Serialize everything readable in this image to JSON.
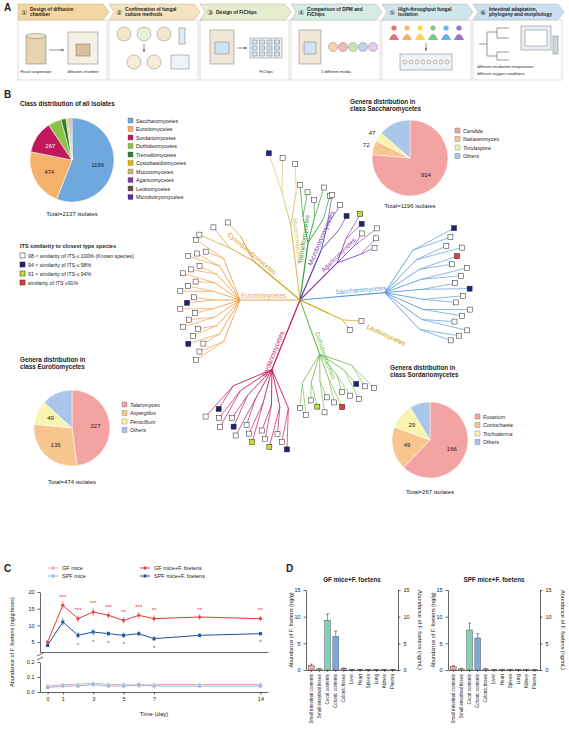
{
  "panel_labels": [
    "A",
    "B",
    "C",
    "D"
  ],
  "workflow": {
    "steps": [
      {
        "num": "①",
        "title": "Design of diffusion chamber",
        "captions": [
          "Fecal suspension",
          "diffusion chamber"
        ]
      },
      {
        "num": "②",
        "title": "Confirmation of fungal culture methods"
      },
      {
        "num": "③",
        "title": "Design of FiChips",
        "captions": [
          "FiChips"
        ]
      },
      {
        "num": "④",
        "title": "Comparison of DPM and FiChips",
        "captions": [
          "5 different media"
        ]
      },
      {
        "num": "⑤",
        "title": "High-throughput fungal isolation"
      },
      {
        "num": "⑥",
        "title": "Intestinal adaptation, phylogeny and morphology",
        "captions": [
          "different incubation temperature",
          "different oxygen conditions"
        ]
      }
    ]
  },
  "tree": {
    "legend_title": "ITS similarity to closest type species",
    "categories": [
      {
        "label": "98 < similarity of ITS ≤ 100% (Known species)",
        "color": "#ffffff"
      },
      {
        "label": "94 < similarity of ITS ≤ 98%",
        "color": "#1a237e"
      },
      {
        "label": "91 < similarity of ITS ≤ 94%",
        "color": "#c6e03a"
      },
      {
        "label": "similarity of ITS ≤91%",
        "color": "#e53935"
      }
    ],
    "clades": [
      {
        "name": "Mucoromycetes",
        "color": "#d9c36a",
        "leaves": [
          1,
          0,
          0
        ]
      },
      {
        "name": "Tremellomycetes",
        "color": "#3a9a3a",
        "leaves": [
          0,
          0,
          0,
          0,
          0
        ]
      },
      {
        "name": "Microbotryomycetes",
        "color": "#6a3fa8",
        "leaves": [
          0,
          0,
          1
        ]
      },
      {
        "name": "Agaricomycetes",
        "color": "#8e44ad",
        "leaves": [
          2,
          1,
          0,
          0,
          0,
          0
        ]
      },
      {
        "name": "Saccharomycetes",
        "color": "#5b9bd5",
        "leaves": [
          1,
          0,
          0,
          0,
          3,
          0,
          0,
          0,
          0,
          1,
          0,
          0,
          0,
          0,
          0,
          0,
          0,
          0
        ]
      },
      {
        "name": "Leotiomycetes",
        "color": "#c8a000",
        "leaves": [
          0,
          0
        ]
      },
      {
        "name": "Dothideomycetes",
        "color": "#7cbf5a",
        "leaves": [
          0,
          0,
          1,
          0,
          0,
          0,
          3,
          0,
          0,
          0,
          2,
          0,
          0,
          0
        ]
      },
      {
        "name": "Sordariomycetes",
        "color": "#c2185b",
        "leaves": [
          1,
          0,
          0,
          2,
          0,
          0,
          2,
          0,
          0,
          0,
          1,
          0,
          0,
          0,
          1,
          0
        ]
      },
      {
        "name": "Eurotiomycetes",
        "color": "#f0a04b",
        "leaves": [
          0,
          0,
          0,
          1,
          0,
          0,
          0,
          0,
          0,
          0,
          1,
          0,
          0,
          0,
          0,
          0,
          0,
          0,
          0,
          0,
          0,
          0
        ]
      },
      {
        "name": "Cystobasidiomycetes",
        "color": "#d4a017",
        "leaves": [
          0,
          0,
          0
        ]
      }
    ]
  },
  "chart_data": [
    {
      "type": "pie",
      "title": "Class distribution of all isolates",
      "categories": [
        "Saccharomycetes",
        "Eurotiomycetes",
        "Sordariomycetes",
        "Dothideomycetes",
        "Tremellomycetes",
        "Cystobasidiomycetes",
        "Mucoromycetes",
        "Agaricomycetes",
        "Leotiomycetes",
        "Microbotryomycetes"
      ],
      "values": [
        1196,
        474,
        267,
        110,
        40,
        15,
        12,
        10,
        8,
        5
      ],
      "colors": [
        "#6fa8dc",
        "#f6b26b",
        "#c2185b",
        "#8bc34a",
        "#2e7d32",
        "#e6b800",
        "#c9b27c",
        "#7b3fa0",
        "#6d4c41",
        "#512da8"
      ],
      "data_labels": true,
      "value_labels": [
        "1196",
        "474",
        "267",
        null,
        null,
        null,
        null,
        null,
        null,
        null
      ],
      "annotations": [
        {
          "text": "Total=2137 isolates"
        }
      ]
    },
    {
      "type": "pie",
      "title": "Genera distribution in class Saccharomycetes",
      "categories": [
        "Candida",
        "Nakaseomyces",
        "Torulaspora",
        "Others"
      ],
      "values": [
        914,
        72,
        47,
        163
      ],
      "colors": [
        "#f4a3a3",
        "#f8c58f",
        "#f9f3b0",
        "#a9c6e8"
      ],
      "data_labels": true,
      "value_labels": [
        "914",
        "72",
        "47",
        null
      ],
      "annotations": [
        {
          "text": "Total=1196 isolates"
        }
      ]
    },
    {
      "type": "pie",
      "title": "Genera distribution in class Eurotiomycetes",
      "categories": [
        "Talaromyces",
        "Aspergillus",
        "Penicillium",
        "Others"
      ],
      "values": [
        227,
        136,
        49,
        62
      ],
      "colors": [
        "#f4a3a3",
        "#f8c58f",
        "#f9f3b0",
        "#a9c6e8"
      ],
      "data_labels": true,
      "value_labels": [
        "227",
        "136",
        "49",
        null
      ],
      "annotations": [
        {
          "text": "Total=474 isolates"
        }
      ]
    },
    {
      "type": "pie",
      "title": "Genera distribution in class Sordariomycetes",
      "categories": [
        "Fusarium",
        "Coniochaeta",
        "Trichoderma",
        "Others"
      ],
      "values": [
        166,
        49,
        29,
        23
      ],
      "colors": [
        "#f4a3a3",
        "#f8c58f",
        "#f9f3b0",
        "#a9c6e8"
      ],
      "data_labels": true,
      "value_labels": [
        "166",
        "49",
        "29",
        null
      ],
      "annotations": [
        {
          "text": "Total=267 isolates"
        }
      ]
    },
    {
      "type": "line",
      "ylabel": "Abundance of F. foetens (ng/g feces)",
      "x": [
        0,
        1,
        2,
        3,
        4,
        5,
        6,
        7,
        10,
        14
      ],
      "xlim": [
        -0.5,
        14.5
      ],
      "ylim": [
        2,
        20
      ],
      "yticks": [
        5,
        10,
        15,
        20
      ],
      "series": [
        {
          "name": "GF mice+F. foetens",
          "color": "#e53935",
          "marker": "circle",
          "values": [
            5,
            16,
            12,
            14,
            13,
            11.5,
            13,
            12,
            12.5,
            12
          ],
          "errors": [
            0.5,
            1.2,
            1,
            1.2,
            1,
            1,
            1,
            1,
            0.8,
            0.8
          ]
        },
        {
          "name": "SPF mice+F. foetens",
          "color": "#1f4e9c",
          "marker": "square",
          "values": [
            4,
            11,
            7,
            8,
            7.5,
            7,
            7.5,
            6,
            7,
            7.5
          ],
          "errors": [
            0.5,
            1.2,
            1,
            1,
            0.8,
            0.8,
            0.8,
            0.8,
            0.6,
            0.6
          ]
        }
      ],
      "annotations": [
        {
          "x": 1,
          "y": 18,
          "text": "***",
          "color": "#e53935"
        },
        {
          "x": 2,
          "y": 14,
          "text": "***",
          "color": "#e53935"
        },
        {
          "x": 3,
          "y": 16,
          "text": "***",
          "color": "#e53935"
        },
        {
          "x": 4,
          "y": 15,
          "text": "***",
          "color": "#e53935"
        },
        {
          "x": 5,
          "y": 13.5,
          "text": "**",
          "color": "#e53935"
        },
        {
          "x": 6,
          "y": 15,
          "text": "***",
          "color": "#e53935"
        },
        {
          "x": 7,
          "y": 14,
          "text": "**",
          "color": "#e53935"
        },
        {
          "x": 10,
          "y": 14,
          "text": "**",
          "color": "#e53935"
        },
        {
          "x": 14,
          "y": 14,
          "text": "**",
          "color": "#e53935"
        },
        {
          "x": 2,
          "y": 3.5,
          "text": "*",
          "color": "#1f4e9c"
        },
        {
          "x": 3,
          "y": 4.5,
          "text": "*",
          "color": "#1f4e9c"
        },
        {
          "x": 4,
          "y": 4.2,
          "text": "*",
          "color": "#1f4e9c"
        },
        {
          "x": 5,
          "y": 3.7,
          "text": "*",
          "color": "#1f4e9c"
        },
        {
          "x": 7,
          "y": 2.7,
          "text": "*",
          "color": "#1f4e9c"
        },
        {
          "x": 14,
          "y": 4.4,
          "text": "*",
          "color": "#1f4e9c"
        }
      ]
    },
    {
      "type": "line",
      "xlabel": "Time (day)",
      "x": [
        0,
        1,
        2,
        3,
        4,
        5,
        6,
        7,
        10,
        14
      ],
      "xlim": [
        -0.5,
        14.5
      ],
      "xticks": [
        0,
        1,
        3,
        5,
        7,
        14
      ],
      "ylim": [
        0,
        0.2
      ],
      "yticks": [
        {
          "value": 0,
          "label": "0.0"
        },
        0.1,
        0.2
      ],
      "series": [
        {
          "name": "GF mice",
          "color": "#f4a6a6",
          "marker": "circle",
          "values": [
            0.04,
            0.05,
            0.05,
            0.06,
            0.05,
            0.05,
            0.04,
            0.05,
            0.05,
            0.05
          ],
          "errors": [
            0.01,
            0.01,
            0.01,
            0.01,
            0.01,
            0.01,
            0.01,
            0.01,
            0.01,
            0.01
          ]
        },
        {
          "name": "SPF mice",
          "color": "#8fb8e0",
          "marker": "square",
          "values": [
            0.03,
            0.04,
            0.04,
            0.05,
            0.04,
            0.04,
            0.05,
            0.04,
            0.04,
            0.04
          ],
          "errors": [
            0.01,
            0.01,
            0.01,
            0.01,
            0.01,
            0.01,
            0.01,
            0.01,
            0.01,
            0.01
          ]
        }
      ]
    },
    {
      "type": "bar",
      "title": "GF mice+F. foetens",
      "ylabel": "Abundance of F. foetens (ng/g)",
      "y2label": "Abundance of F. foetens (ng/mL)",
      "categories": [
        "Small intestinal contents",
        "Small intestinal tissue",
        "Cecal contents",
        "Colonic contents",
        "Colonic tissue",
        "Liver",
        "Heart",
        "Spleen",
        "Lung",
        "Kidney",
        "Plasma"
      ],
      "colors": [
        "#f4a6a6",
        "#f6c28b",
        "#7fd1b9",
        "#7fa8d8",
        "#b9a3d9",
        "#d9d9d9",
        "#e8b4c8",
        "#c5e0a5",
        "#f3e08a",
        "#a7d3e6",
        "#e0c080"
      ],
      "ylim": [
        0,
        15
      ],
      "yticks": [
        0,
        5,
        10,
        15
      ],
      "y2lim": [
        0,
        15
      ],
      "y2ticks": [
        0,
        5,
        10,
        15
      ],
      "series": [
        {
          "values": [
            0.8,
            0.2,
            9.3,
            6.3,
            0.3,
            0.05,
            0.05,
            0.05,
            0.05,
            0.05,
            null
          ],
          "errors": [
            0.3,
            0.1,
            1.2,
            1.0,
            0.1,
            0.02,
            0.02,
            0.02,
            0.02,
            0.02,
            null
          ]
        },
        {
          "axis": "y2",
          "values": [
            null,
            null,
            null,
            null,
            null,
            null,
            null,
            null,
            null,
            null,
            0.05
          ],
          "errors": [
            null,
            null,
            null,
            null,
            null,
            null,
            null,
            null,
            null,
            null,
            0.02
          ]
        }
      ]
    },
    {
      "type": "bar",
      "title": "SPF mice+F. foetens",
      "ylabel": "Abundance of F. foetens (ng/g)",
      "y2label": "Abundance of F. foetens (ng/mL)",
      "categories": [
        "Small intestinal contents",
        "Small intestinal tissue",
        "Cecal contents",
        "Colonic contents",
        "Colonic tissue",
        "Liver",
        "Heart",
        "Spleen",
        "Lung",
        "Kidney",
        "Plasma"
      ],
      "colors": [
        "#f4a6a6",
        "#f6c28b",
        "#7fd1b9",
        "#7fa8d8",
        "#b9a3d9",
        "#d9d9d9",
        "#e8b4c8",
        "#c5e0a5",
        "#f3e08a",
        "#a7d3e6",
        "#e0c080"
      ],
      "ylim": [
        0,
        15
      ],
      "yticks": [
        0,
        5,
        10,
        15
      ],
      "y2lim": [
        0,
        15
      ],
      "y2ticks": [
        0,
        5,
        10,
        15
      ],
      "series": [
        {
          "values": [
            0.6,
            0.2,
            7.5,
            6.0,
            0.2,
            0.05,
            0.05,
            0.05,
            0.05,
            0.05,
            null
          ],
          "errors": [
            0.2,
            0.1,
            1.3,
            0.8,
            0.1,
            0.02,
            0.02,
            0.02,
            0.02,
            0.02,
            null
          ]
        },
        {
          "axis": "y2",
          "values": [
            null,
            null,
            null,
            null,
            null,
            null,
            null,
            null,
            null,
            null,
            0.05
          ],
          "errors": [
            null,
            null,
            null,
            null,
            null,
            null,
            null,
            null,
            null,
            null,
            0.02
          ]
        }
      ]
    }
  ]
}
